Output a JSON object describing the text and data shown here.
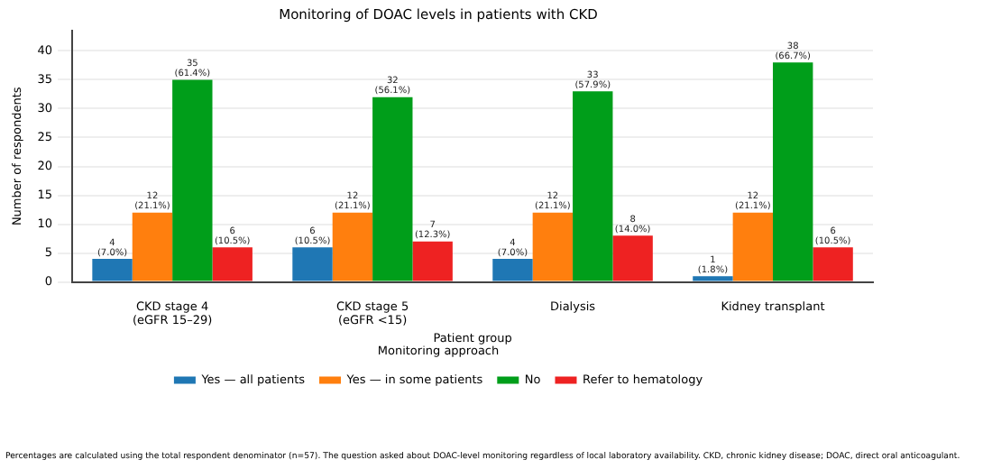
{
  "chart_data": {
    "type": "bar",
    "title": "Monitoring of DOAC levels in patients with CKD",
    "xlabel": "Patient group",
    "ylabel": "Number of respondents",
    "legend_title": "Monitoring approach",
    "categories": [
      "CKD stage 4\n(eGFR 15–29)",
      "CKD stage 5\n(eGFR <15)",
      "Dialysis",
      "Kidney transplant"
    ],
    "series": [
      {
        "name": "Yes — all patients",
        "color": "#1f77b4",
        "values": [
          4,
          6,
          4,
          1
        ],
        "value_labels": [
          "4\n(7.0%)",
          "6\n(10.5%)",
          "4\n(7.0%)",
          "1\n(1.8%)"
        ]
      },
      {
        "name": "Yes — in some patients",
        "color": "#ff7f0e",
        "values": [
          12,
          12,
          12,
          12
        ],
        "value_labels": [
          "12\n(21.1%)",
          "12\n(21.1%)",
          "12\n(21.1%)",
          "12\n(21.1%)"
        ]
      },
      {
        "name": "No",
        "color": "#009e1a",
        "values": [
          35,
          32,
          33,
          38
        ],
        "value_labels": [
          "35\n(61.4%)",
          "32\n(56.1%)",
          "33\n(57.9%)",
          "38\n(66.7%)"
        ]
      },
      {
        "name": "Refer to hematology",
        "color": "#ee2222",
        "values": [
          6,
          7,
          8,
          6
        ],
        "value_labels": [
          "6\n(10.5%)",
          "7\n(12.3%)",
          "8\n(14.0%)",
          "6\n(10.5%)"
        ]
      }
    ],
    "ylim": [
      0,
      43.5
    ],
    "yticks": [
      0,
      5,
      10,
      15,
      20,
      25,
      30,
      35,
      40
    ],
    "grid": "y",
    "legend": "bottom",
    "annotations": [
      "Percentages are calculated using the total respondent denominator (n=57). The question asked about DOAC-level monitoring regardless of local laboratory availability. CKD, chronic kidney disease; DOAC, direct oral anticoagulant."
    ]
  }
}
